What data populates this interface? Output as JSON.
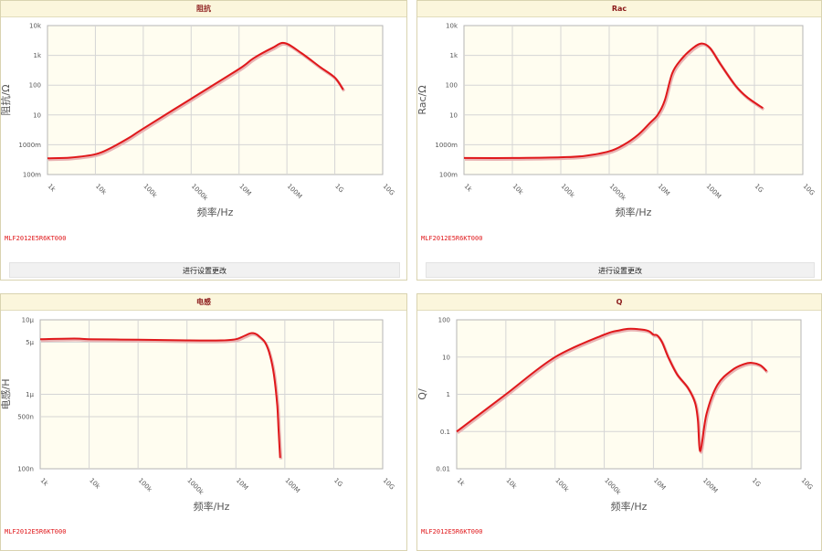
{
  "panels": [
    {
      "title": "阻抗",
      "part_number": "MLF2012E5R6KT000",
      "button_label": "进行设置更改",
      "chart_data": {
        "type": "line",
        "title": "阻抗",
        "xlabel": "频率/Hz",
        "ylabel": "阻抗/Ω",
        "x_scale": "log",
        "y_scale": "log",
        "xlim": [
          1000,
          10000000000
        ],
        "ylim": [
          0.1,
          10000
        ],
        "x_ticks": [
          "1k",
          "10k",
          "100k",
          "1000k",
          "10M",
          "100M",
          "1G",
          "10G"
        ],
        "y_ticks": [
          "10k",
          "1k",
          "100",
          "10",
          "1000m",
          "100m"
        ],
        "grid": true,
        "line_color": "#e0181b",
        "series": [
          {
            "x": [
              1000,
              3000,
              10000,
              20000,
              50000,
              100000,
              1000000,
              10000000,
              20000000,
              50000000,
              90000000,
              200000000,
              500000000,
              1000000000,
              1500000000
            ],
            "y": [
              0.35,
              0.37,
              0.48,
              0.75,
              1.7,
              3.5,
              35,
              350,
              800,
              1800,
              2600,
              1200,
              400,
              180,
              70
            ]
          }
        ]
      }
    },
    {
      "title": "Rac",
      "part_number": "MLF2012E5R6KT000",
      "button_label": "进行设置更改",
      "chart_data": {
        "type": "line",
        "title": "Rac",
        "xlabel": "频率/Hz",
        "ylabel": "Rac/Ω",
        "x_scale": "log",
        "y_scale": "log",
        "xlim": [
          1000,
          10000000000
        ],
        "ylim": [
          0.1,
          10000
        ],
        "x_ticks": [
          "1k",
          "10k",
          "100k",
          "1000k",
          "10M",
          "100M",
          "1G",
          "10G"
        ],
        "y_ticks": [
          "10k",
          "1k",
          "100",
          "10",
          "1000m",
          "100m"
        ],
        "grid": true,
        "line_color": "#e0181b",
        "series": [
          {
            "x": [
              1000,
              10000,
              100000,
              300000,
              1000000,
              2000000,
              4000000,
              7000000,
              10000000,
              14000000,
              20000000,
              30000000,
              50000000,
              80000000,
              120000000,
              200000000,
              400000000,
              700000000,
              1500000000
            ],
            "y": [
              0.36,
              0.36,
              0.38,
              0.42,
              0.6,
              1.0,
              2.2,
              5.5,
              10,
              30,
              250,
              700,
              1600,
              2500,
              1800,
              500,
              100,
              40,
              17
            ]
          }
        ]
      }
    },
    {
      "title": "电感",
      "part_number": "MLF2012E5R6KT000",
      "chart_data": {
        "type": "line",
        "title": "电感",
        "xlabel": "频率/Hz",
        "ylabel": "电感/H",
        "x_scale": "log",
        "y_scale": "log",
        "xlim": [
          1000,
          10000000000
        ],
        "ylim": [
          1e-07,
          1e-05
        ],
        "x_ticks": [
          "1k",
          "10k",
          "100k",
          "1000k",
          "10M",
          "100M",
          "1G",
          "10G"
        ],
        "y_ticks": [
          "10μ",
          "5μ",
          "1μ",
          "500n",
          "100n"
        ],
        "grid": true,
        "line_color": "#e0181b",
        "series": [
          {
            "x": [
              1000,
              5000,
              10000,
              100000,
              1000000,
              5000000,
              10000000,
              15000000,
              20000000,
              25000000,
              30000000,
              40000000,
              50000000,
              60000000,
              70000000,
              75000000,
              80000000
            ],
            "y": [
              5.5e-06,
              5.6e-06,
              5.5e-06,
              5.4e-06,
              5.3e-06,
              5.3e-06,
              5.5e-06,
              6.1e-06,
              6.6e-06,
              6.5e-06,
              6e-06,
              4.9e-06,
              3.3e-06,
              1.8e-06,
              7e-07,
              3e-07,
              1.4e-07
            ]
          }
        ]
      }
    },
    {
      "title": "Q",
      "part_number": "MLF2012E5R6KT000",
      "chart_data": {
        "type": "line",
        "title": "Q",
        "xlabel": "频率/Hz",
        "ylabel": "Q/",
        "x_scale": "log",
        "y_scale": "log",
        "xlim": [
          1000,
          10000000000
        ],
        "ylim": [
          0.01,
          100
        ],
        "x_ticks": [
          "1k",
          "10k",
          "100k",
          "1000k",
          "10M",
          "100M",
          "1G",
          "10G"
        ],
        "y_ticks": [
          "100",
          "10",
          "1",
          "0.1",
          "0.01"
        ],
        "grid": true,
        "line_color": "#e0181b",
        "series": [
          {
            "x": [
              1000,
              10000,
              100000,
              1000000,
              2000000,
              3000000,
              5000000,
              8000000,
              10000000,
              12000000,
              15000000,
              20000000,
              30000000,
              50000000,
              70000000,
              80000000,
              90000000,
              120000000,
              200000000,
              400000000,
              700000000,
              1000000000,
              1500000000,
              2000000000
            ],
            "y": [
              0.1,
              1.0,
              10,
              40,
              52,
              57,
              56,
              50,
              40,
              38,
              25,
              10,
              3.5,
              1.5,
              0.6,
              0.2,
              0.03,
              0.3,
              1.8,
              4.5,
              6.5,
              7,
              6,
              4.2
            ]
          }
        ]
      }
    }
  ]
}
